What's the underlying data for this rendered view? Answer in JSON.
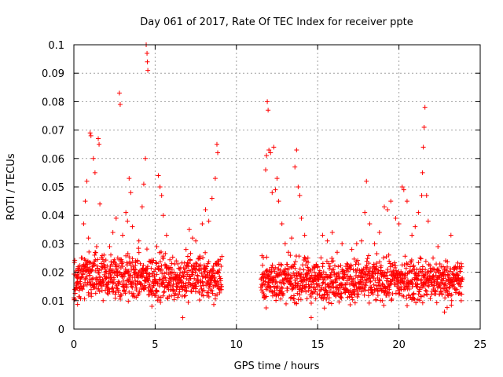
{
  "chart_data": {
    "type": "scatter",
    "title": "Day 061 of 2017, Rate Of TEC Index for receiver ppte",
    "xlabel": "GPS time / hours",
    "ylabel": "ROTI / TECUs",
    "xlim": [
      0,
      25
    ],
    "ylim": [
      0,
      0.1
    ],
    "x_ticks": [
      0,
      5,
      10,
      15,
      20,
      25
    ],
    "x_tick_labels": [
      "0",
      "5",
      "10",
      "15",
      "20",
      "25"
    ],
    "y_ticks": [
      0,
      0.01,
      0.02,
      0.03,
      0.04,
      0.05,
      0.06,
      0.07,
      0.08,
      0.09,
      0.1
    ],
    "y_tick_labels": [
      "0",
      "0.01",
      "0.02",
      "0.03",
      "0.04",
      "0.05",
      "0.06",
      "0.07",
      "0.08",
      "0.09",
      "0.1"
    ],
    "grid": true,
    "marker": "+",
    "marker_color": "#ff0000",
    "data_gap_hours": [
      9.2,
      11.4
    ],
    "points": [
      [
        0.0,
        0.011
      ],
      [
        0.1,
        0.014
      ],
      [
        0.2,
        0.018
      ],
      [
        0.3,
        0.021
      ],
      [
        0.4,
        0.016
      ],
      [
        0.5,
        0.025
      ],
      [
        0.6,
        0.037
      ],
      [
        0.7,
        0.045
      ],
      [
        0.8,
        0.052
      ],
      [
        0.9,
        0.032
      ],
      [
        1.0,
        0.069
      ],
      [
        1.05,
        0.068
      ],
      [
        1.2,
        0.06
      ],
      [
        1.3,
        0.055
      ],
      [
        1.4,
        0.029
      ],
      [
        1.5,
        0.067
      ],
      [
        1.55,
        0.065
      ],
      [
        1.6,
        0.044
      ],
      [
        1.7,
        0.022
      ],
      [
        1.8,
        0.01
      ],
      [
        2.0,
        0.018
      ],
      [
        2.2,
        0.029
      ],
      [
        2.4,
        0.034
      ],
      [
        2.6,
        0.039
      ],
      [
        2.7,
        0.025
      ],
      [
        2.8,
        0.083
      ],
      [
        2.85,
        0.079
      ],
      [
        3.0,
        0.033
      ],
      [
        3.2,
        0.041
      ],
      [
        3.3,
        0.038
      ],
      [
        3.4,
        0.053
      ],
      [
        3.5,
        0.048
      ],
      [
        3.6,
        0.036
      ],
      [
        3.8,
        0.024
      ],
      [
        4.0,
        0.031
      ],
      [
        4.2,
        0.043
      ],
      [
        4.3,
        0.051
      ],
      [
        4.4,
        0.06
      ],
      [
        4.45,
        0.1
      ],
      [
        4.5,
        0.097
      ],
      [
        4.52,
        0.094
      ],
      [
        4.55,
        0.091
      ],
      [
        4.6,
        0.012
      ],
      [
        4.8,
        0.008
      ],
      [
        5.0,
        0.021
      ],
      [
        5.1,
        0.029
      ],
      [
        5.2,
        0.054
      ],
      [
        5.3,
        0.05
      ],
      [
        5.4,
        0.047
      ],
      [
        5.5,
        0.04
      ],
      [
        5.7,
        0.033
      ],
      [
        5.9,
        0.021
      ],
      [
        6.1,
        0.018
      ],
      [
        6.3,
        0.024
      ],
      [
        6.5,
        0.014
      ],
      [
        6.7,
        0.004
      ],
      [
        6.9,
        0.028
      ],
      [
        7.1,
        0.035
      ],
      [
        7.3,
        0.032
      ],
      [
        7.5,
        0.031
      ],
      [
        7.7,
        0.025
      ],
      [
        7.9,
        0.037
      ],
      [
        8.1,
        0.042
      ],
      [
        8.3,
        0.038
      ],
      [
        8.5,
        0.046
      ],
      [
        8.7,
        0.053
      ],
      [
        8.8,
        0.065
      ],
      [
        8.85,
        0.062
      ],
      [
        8.9,
        0.024
      ],
      [
        9.0,
        0.014
      ],
      [
        11.6,
        0.013
      ],
      [
        11.7,
        0.011
      ],
      [
        11.8,
        0.056
      ],
      [
        11.85,
        0.061
      ],
      [
        11.9,
        0.08
      ],
      [
        11.95,
        0.077
      ],
      [
        12.0,
        0.063
      ],
      [
        12.1,
        0.062
      ],
      [
        12.2,
        0.048
      ],
      [
        12.3,
        0.064
      ],
      [
        12.4,
        0.049
      ],
      [
        12.5,
        0.053
      ],
      [
        12.6,
        0.045
      ],
      [
        12.8,
        0.037
      ],
      [
        13.0,
        0.03
      ],
      [
        13.2,
        0.027
      ],
      [
        13.4,
        0.032
      ],
      [
        13.6,
        0.057
      ],
      [
        13.7,
        0.063
      ],
      [
        13.8,
        0.05
      ],
      [
        13.9,
        0.047
      ],
      [
        14.0,
        0.039
      ],
      [
        14.2,
        0.033
      ],
      [
        14.4,
        0.025
      ],
      [
        14.6,
        0.004
      ],
      [
        14.8,
        0.02
      ],
      [
        15.0,
        0.022
      ],
      [
        15.3,
        0.033
      ],
      [
        15.6,
        0.031
      ],
      [
        15.9,
        0.034
      ],
      [
        16.2,
        0.027
      ],
      [
        16.5,
        0.03
      ],
      [
        16.8,
        0.023
      ],
      [
        17.1,
        0.028
      ],
      [
        17.4,
        0.03
      ],
      [
        17.7,
        0.031
      ],
      [
        17.9,
        0.041
      ],
      [
        18.0,
        0.052
      ],
      [
        18.2,
        0.037
      ],
      [
        18.5,
        0.03
      ],
      [
        18.8,
        0.034
      ],
      [
        19.1,
        0.043
      ],
      [
        19.3,
        0.042
      ],
      [
        19.5,
        0.045
      ],
      [
        19.8,
        0.039
      ],
      [
        20.0,
        0.037
      ],
      [
        20.2,
        0.05
      ],
      [
        20.3,
        0.049
      ],
      [
        20.5,
        0.045
      ],
      [
        20.8,
        0.033
      ],
      [
        21.0,
        0.036
      ],
      [
        21.2,
        0.041
      ],
      [
        21.4,
        0.047
      ],
      [
        21.45,
        0.055
      ],
      [
        21.5,
        0.064
      ],
      [
        21.55,
        0.071
      ],
      [
        21.6,
        0.078
      ],
      [
        21.7,
        0.047
      ],
      [
        21.8,
        0.038
      ],
      [
        22.1,
        0.025
      ],
      [
        22.4,
        0.029
      ],
      [
        22.7,
        0.02
      ],
      [
        22.8,
        0.006
      ],
      [
        23.0,
        0.012
      ],
      [
        23.2,
        0.033
      ],
      [
        23.4,
        0.021
      ],
      [
        23.6,
        0.018
      ],
      [
        23.8,
        0.015
      ]
    ],
    "dense_bands": [
      {
        "x0": 0.0,
        "x1": 9.1,
        "low": 0.006,
        "high": 0.03,
        "typical": 0.017
      },
      {
        "x0": 11.5,
        "x1": 23.9,
        "low": 0.006,
        "high": 0.028,
        "typical": 0.018
      }
    ]
  }
}
